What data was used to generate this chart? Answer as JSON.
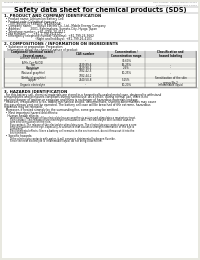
{
  "bg_color": "#e8e8e0",
  "page_bg": "#ffffff",
  "header_left": "Product Name: Lithium Ion Battery Cell",
  "header_right_line1": "SDS Number: CS2001-YBF049-00010",
  "header_right_line2": "Established / Revision: Dec.7,2010",
  "title": "Safety data sheet for chemical products (SDS)",
  "section1_title": "1. PRODUCT AND COMPANY IDENTIFICATION",
  "section1_lines": [
    "  • Product name: Lithium Ion Battery Cell",
    "  • Product code: Cylindrical-type cell",
    "       (IVT-86500, IVT-86500, IVT-86500A)",
    "  • Company name:      Sanyo Electric Co., Ltd., Mobile Energy Company",
    "  • Address:           2001, Kamimakura, Sumoto-City, Hyogo, Japan",
    "  • Telephone number:  +81-(799)-20-4111",
    "  • Fax number:        +81-1-799-26-4127",
    "  • Emergency telephone number (daytime): +81-799-26-3662",
    "                                    (Night and holidays): +81-799-26-4101"
  ],
  "section2_title": "2. COMPOSITIONS / INFORMATION ON INGREDIENTS",
  "section2_intro": "  • Substance or preparation: Preparation",
  "section2_sub": "    Information about the chemical nature of product:",
  "table_headers": [
    "Component (chemical name) /\nSeveral name",
    "CAS number",
    "Concentration /\nConcentration range",
    "Classification and\nhazard labeling"
  ],
  "table_rows": [
    [
      "Lithium cobalt oxide\n(LiMn-Co+Ni)O2)",
      "-",
      "30-60%",
      ""
    ],
    [
      "Iron",
      "7439-89-6",
      "16-25%",
      "-"
    ],
    [
      "Aluminium",
      "7429-90-5",
      "2-5%",
      "-"
    ],
    [
      "Graphite\n(Natural graphite)\n(Artificial graphite)",
      "7782-42-5\n7782-44-2",
      "10-25%",
      "-"
    ],
    [
      "Copper",
      "7440-50-8",
      "5-15%",
      "Sensitization of the skin\ngroup No.2"
    ],
    [
      "Organic electrolyte",
      "-",
      "10-20%",
      "Inflammable liquid"
    ]
  ],
  "section3_title": "3. HAZARDS IDENTIFICATION",
  "section3_para": [
    "  For this battery cell, chemical materials are stored in a hermetically-sealed metal case, designed to withstand",
    "temperatures and pressures-conditions during normal use. As a result, during normal use, there is no",
    "physical danger of ignition or explosion and there is no danger of hazardous materials leakage.",
    "  However, if exposed to a fire, added mechanical shocks, decompresses, shorting abnormalities may cause",
    "the gas release vent not be operated. The battery cell case will be breached of the extreme, hazardous",
    "materials may be released.",
    "  Moreover, if heated strongly by the surrounding fire, some gas may be emitted."
  ],
  "section3_sub1": "  • Most important hazard and effects:",
  "section3_human": "    Human health effects:",
  "section3_human_lines": [
    "        Inhalation: The release of the electrolyte has an anesthesia action and stimulates a respiratory tract.",
    "        Skin contact: The release of the electrolyte stimulates a skin. The electrolyte skin contact causes a",
    "        sore and stimulation on the skin.",
    "        Eye contact: The release of the electrolyte stimulates eyes. The electrolyte eye contact causes a sore",
    "        and stimulation on the eye. Especially, a substance that causes a strong inflammation of the eye is",
    "        contained.",
    "        Environmental effects: Since a battery cell remains in the environment, do not throw out it into the",
    "        environment."
  ],
  "section3_specific": "  • Specific hazards:",
  "section3_specific_lines": [
    "        If the electrolyte contacts with water, it will generate detrimental hydrogen fluoride.",
    "        Since the neat electrolyte is inflammable liquid, do not bring close to fire."
  ],
  "text_color": "#111111",
  "line_color": "#777777",
  "table_border_color": "#666666",
  "header_gray": "#888888"
}
